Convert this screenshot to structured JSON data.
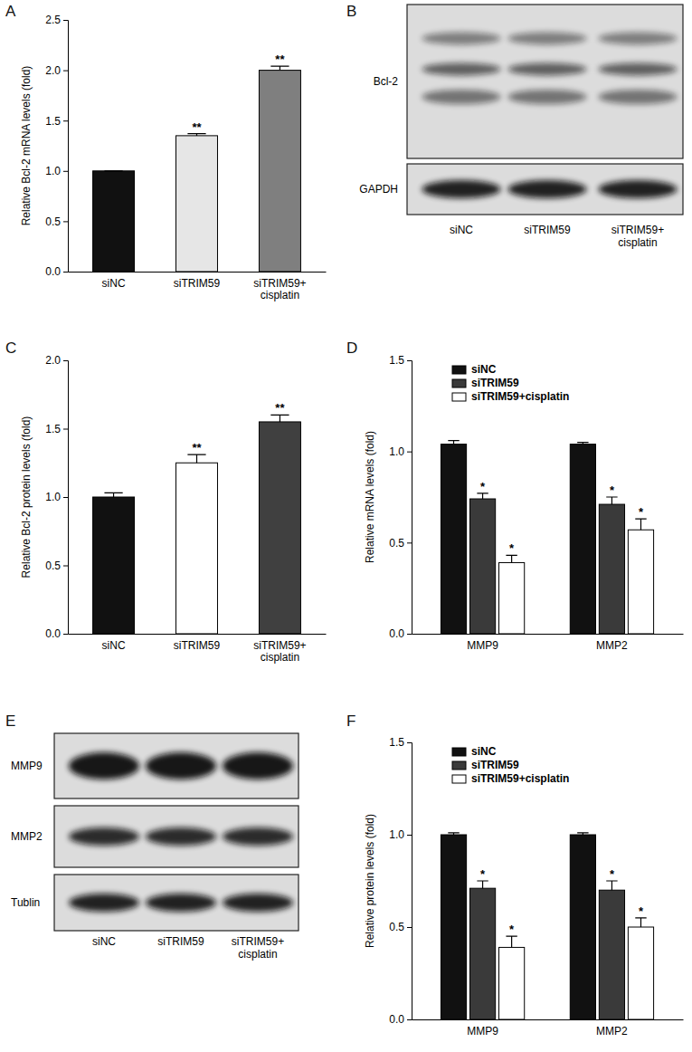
{
  "chart_data": [
    {
      "panel": "A",
      "type": "bar",
      "y_label": "Relative Bcl-2 mRNA levels (fold)",
      "categories": [
        "siNC",
        "siTRIM59",
        "siTRIM59+cisplatin"
      ],
      "values": [
        1.0,
        1.35,
        2.0
      ],
      "errors": [
        0,
        0.02,
        0.04
      ],
      "significance": [
        null,
        "**",
        "**"
      ],
      "colors": [
        "#111111",
        "#e6e6e6",
        "#7f7f7f"
      ],
      "ylim": [
        0,
        2.5
      ],
      "yticks": [
        {
          "value": 0,
          "label": "0.0"
        },
        {
          "value": 0.5,
          "label": "0.5"
        },
        {
          "value": 1,
          "label": "1.0"
        },
        {
          "value": 1.5,
          "label": "1.5"
        },
        {
          "value": 2,
          "label": "2.0"
        },
        {
          "value": 2.5,
          "label": "2.5"
        }
      ]
    },
    {
      "panel": "B",
      "type": "blot",
      "rows": [
        "Bcl-2",
        "GAPDH"
      ],
      "lanes": [
        "siNC",
        "siTRIM59",
        "siTRIM59+cisplatin"
      ]
    },
    {
      "panel": "C",
      "type": "bar",
      "y_label": "Relative Bcl-2 protein levels (fold)",
      "categories": [
        "siNC",
        "siTRIM59",
        "siTRIM59+cisplatin"
      ],
      "values": [
        1.0,
        1.25,
        1.55
      ],
      "errors": [
        0.03,
        0.06,
        0.05
      ],
      "significance": [
        null,
        "**",
        "**"
      ],
      "colors": [
        "#111111",
        "#ffffff",
        "#404040"
      ],
      "ylim": [
        0,
        2.0
      ],
      "yticks": [
        {
          "value": 0,
          "label": "0.0"
        },
        {
          "value": 0.5,
          "label": "0.5"
        },
        {
          "value": 1,
          "label": "1.0"
        },
        {
          "value": 1.5,
          "label": "1.5"
        },
        {
          "value": 2,
          "label": "2.0"
        }
      ]
    },
    {
      "panel": "D",
      "type": "bar",
      "y_label": "Relative mRNA levels (fold)",
      "categories": [
        "MMP9",
        "MMP2"
      ],
      "legend": "upper left",
      "series": [
        {
          "name": "siNC",
          "color": "#111111",
          "values": [
            1.04,
            1.04
          ],
          "errors": [
            0.02,
            0.01
          ],
          "significance": [
            null,
            null
          ]
        },
        {
          "name": "siTRIM59",
          "color": "#3a3a3a",
          "values": [
            0.74,
            0.71
          ],
          "errors": [
            0.03,
            0.04
          ],
          "significance": [
            "*",
            "*"
          ]
        },
        {
          "name": "siTRIM59+cisplatin",
          "color": "#ffffff",
          "values": [
            0.39,
            0.57
          ],
          "errors": [
            0.04,
            0.06
          ],
          "significance": [
            "*",
            "*"
          ]
        }
      ],
      "ylim": [
        0,
        1.5
      ],
      "yticks": [
        {
          "value": 0,
          "label": "0.0"
        },
        {
          "value": 0.5,
          "label": "0.5"
        },
        {
          "value": 1,
          "label": "1.0"
        },
        {
          "value": 1.5,
          "label": "1.5"
        }
      ]
    },
    {
      "panel": "E",
      "type": "blot",
      "rows": [
        "MMP9",
        "MMP2",
        "Tublin"
      ],
      "lanes": [
        "siNC",
        "siTRIM59",
        "siTRIM59+cisplatin"
      ]
    },
    {
      "panel": "F",
      "type": "bar",
      "y_label": "Relative protein levels (fold)",
      "categories": [
        "MMP9",
        "MMP2"
      ],
      "legend": "upper left",
      "series": [
        {
          "name": "siNC",
          "color": "#111111",
          "values": [
            1.0,
            1.0
          ],
          "errors": [
            0.01,
            0.01
          ],
          "significance": [
            null,
            null
          ]
        },
        {
          "name": "siTRIM59",
          "color": "#3a3a3a",
          "values": [
            0.71,
            0.7
          ],
          "errors": [
            0.04,
            0.05
          ],
          "significance": [
            "*",
            "*"
          ]
        },
        {
          "name": "siTRIM59+cisplatin",
          "color": "#ffffff",
          "values": [
            0.39,
            0.5
          ],
          "errors": [
            0.06,
            0.05
          ],
          "significance": [
            "*",
            "*"
          ]
        }
      ],
      "ylim": [
        0,
        1.5
      ],
      "yticks": [
        {
          "value": 0,
          "label": "0.0"
        },
        {
          "value": 0.5,
          "label": "0.5"
        },
        {
          "value": 1,
          "label": "1.0"
        },
        {
          "value": 1.5,
          "label": "1.5"
        }
      ]
    }
  ]
}
